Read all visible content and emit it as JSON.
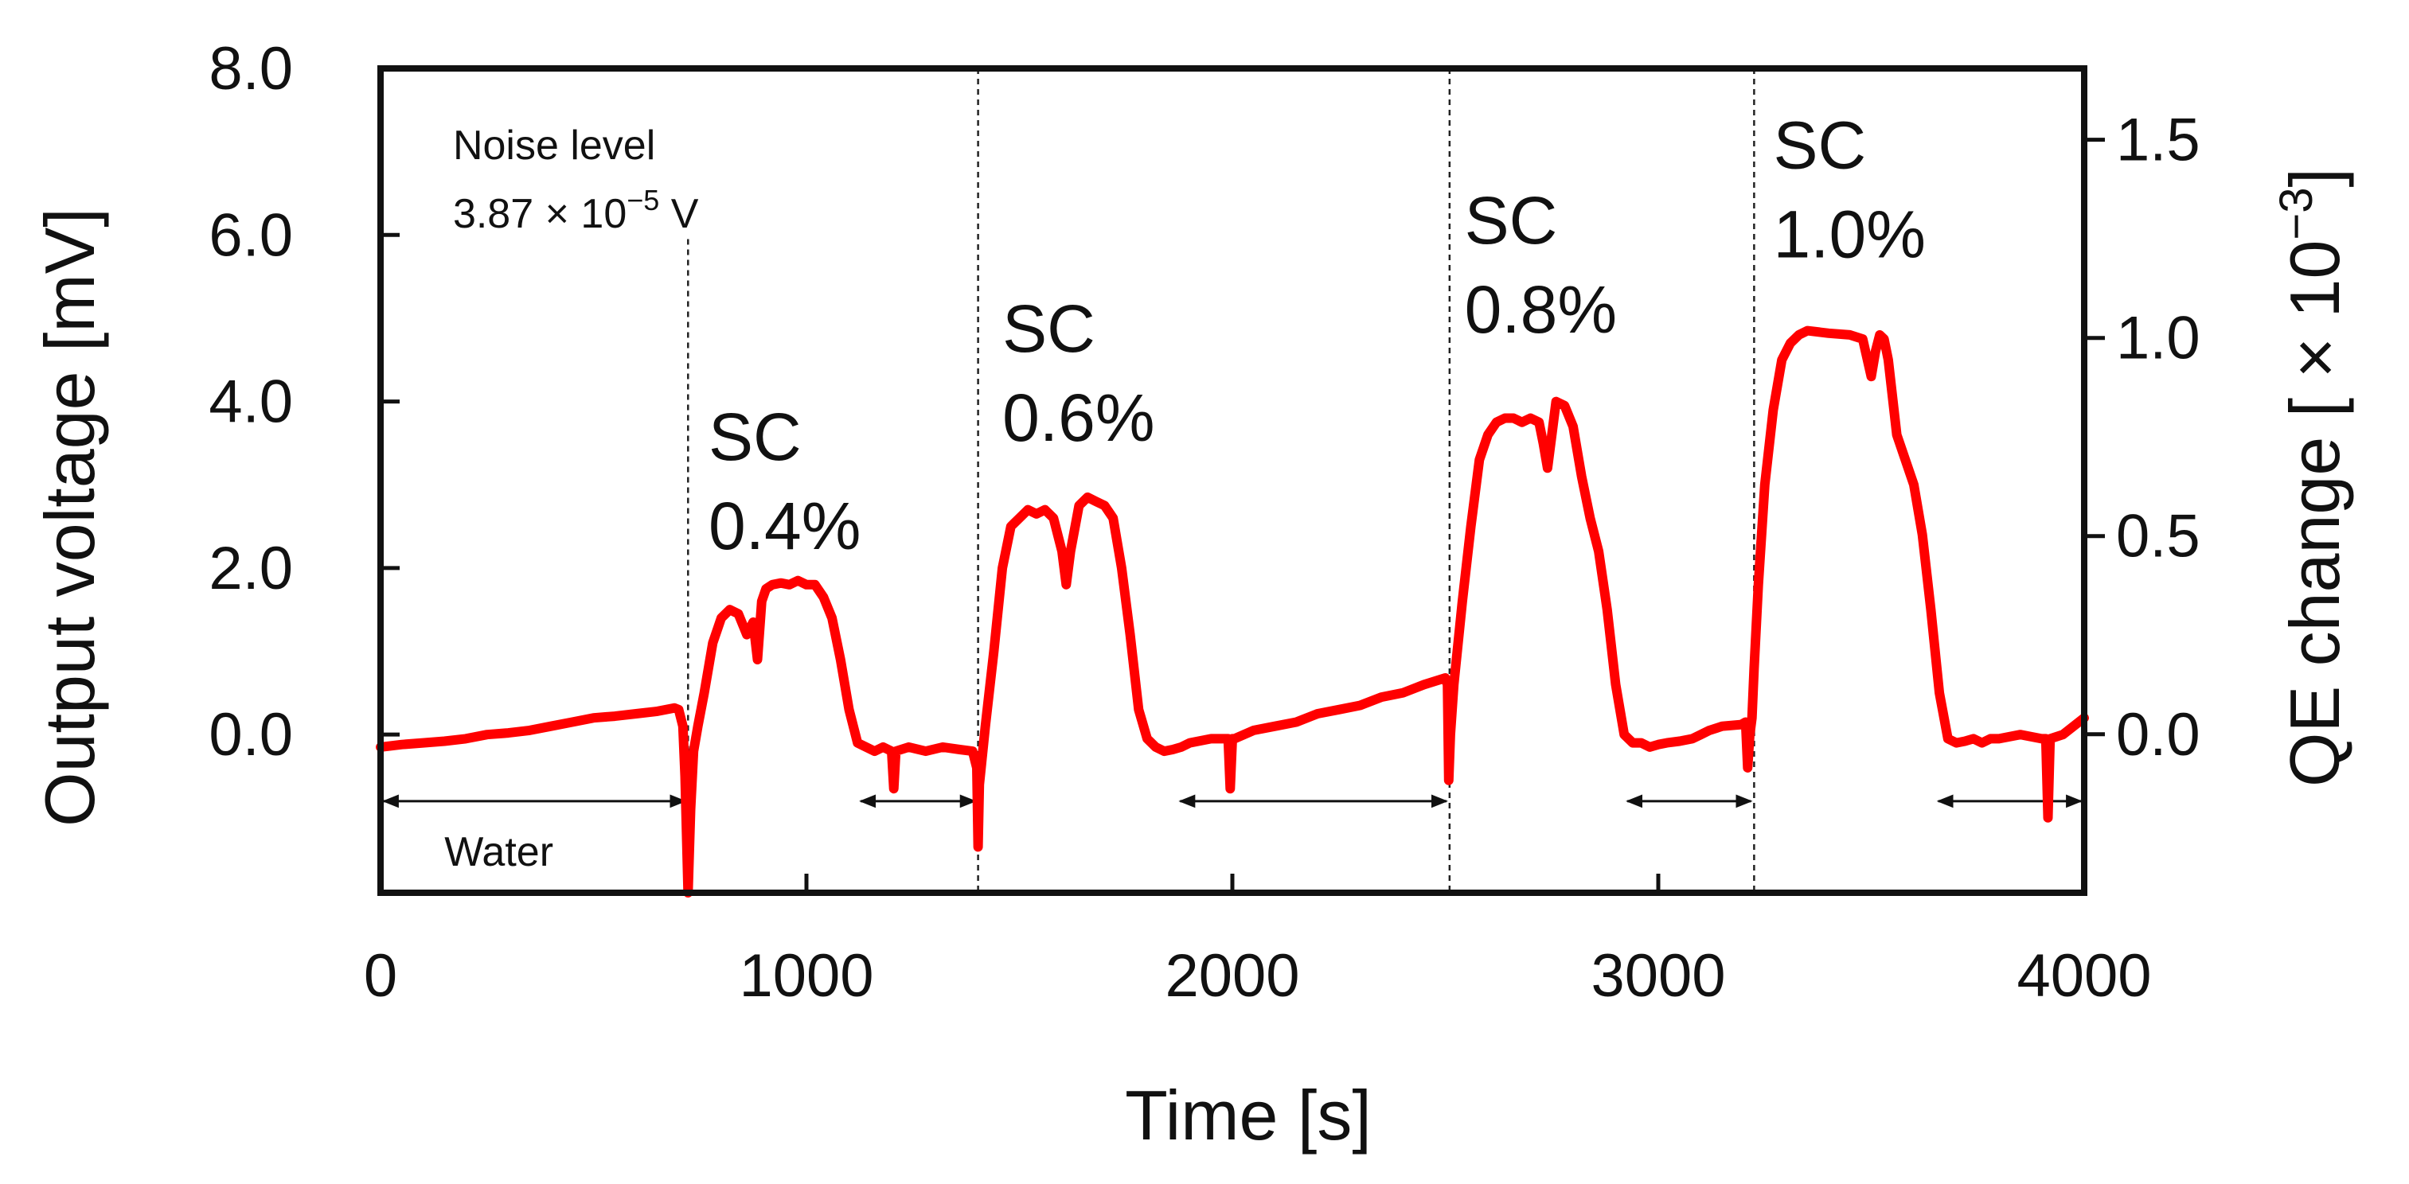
{
  "chart_data": {
    "type": "line",
    "xlabel": "Time [s]",
    "ylabel": "Output voltage [mV]",
    "y2label_prefix": "QE change [ × 10",
    "y2label_exp": "−3",
    "y2label_suffix": "]",
    "xlim": [
      0,
      4000
    ],
    "ylim": [
      -1.9,
      8.0
    ],
    "y2lim": [
      -0.4,
      1.68
    ],
    "x_ticks": [
      0,
      1000,
      2000,
      3000,
      4000
    ],
    "x_tick_labels": [
      "0",
      "1000",
      "2000",
      "3000",
      "4000"
    ],
    "y_ticks": [
      0,
      2,
      4,
      6,
      8
    ],
    "y_tick_labels": [
      "0.0",
      "2.0",
      "4.0",
      "6.0",
      "8.0"
    ],
    "y2_ticks": [
      0,
      0.5,
      1.0,
      1.5
    ],
    "y2_tick_labels": [
      "0.0",
      "0.5",
      "1.0",
      "1.5"
    ],
    "line_color": "#ff0000",
    "series": [
      {
        "name": "Output voltage",
        "x": [
          0,
          50,
          100,
          150,
          200,
          250,
          300,
          350,
          400,
          450,
          500,
          550,
          600,
          650,
          690,
          700,
          710,
          715,
          722,
          728,
          735,
          745,
          760,
          780,
          800,
          820,
          840,
          860,
          875,
          885,
          895,
          905,
          920,
          940,
          960,
          980,
          1000,
          1020,
          1040,
          1060,
          1080,
          1100,
          1120,
          1140,
          1160,
          1180,
          1200,
          1205,
          1210,
          1240,
          1280,
          1320,
          1360,
          1390,
          1400,
          1403,
          1406,
          1412,
          1420,
          1440,
          1460,
          1480,
          1500,
          1520,
          1540,
          1560,
          1580,
          1600,
          1610,
          1620,
          1640,
          1660,
          1680,
          1700,
          1720,
          1740,
          1760,
          1780,
          1800,
          1820,
          1840,
          1860,
          1880,
          1900,
          1950,
          1990,
          1995,
          2000,
          2005,
          2050,
          2100,
          2150,
          2200,
          2250,
          2300,
          2350,
          2400,
          2450,
          2500,
          2505,
          2508,
          2512,
          2520,
          2540,
          2560,
          2580,
          2600,
          2620,
          2640,
          2660,
          2680,
          2700,
          2720,
          2730,
          2740,
          2750,
          2760,
          2780,
          2800,
          2820,
          2840,
          2860,
          2880,
          2900,
          2920,
          2940,
          2960,
          2980,
          3000,
          3020,
          3050,
          3080,
          3100,
          3120,
          3150,
          3195,
          3205,
          3210,
          3215,
          3220,
          3225,
          3235,
          3250,
          3270,
          3290,
          3310,
          3330,
          3350,
          3400,
          3450,
          3480,
          3500,
          3510,
          3520,
          3530,
          3540,
          3560,
          3580,
          3600,
          3620,
          3640,
          3660,
          3680,
          3700,
          3720,
          3740,
          3760,
          3780,
          3800,
          3850,
          3900,
          3910,
          3915,
          3920,
          3950,
          4000
        ],
        "values": [
          -0.15,
          -0.12,
          -0.1,
          -0.08,
          -0.05,
          0.0,
          0.02,
          0.05,
          0.1,
          0.15,
          0.2,
          0.22,
          0.25,
          0.28,
          0.32,
          0.3,
          0.1,
          -0.5,
          -1.9,
          -0.9,
          -0.2,
          0.1,
          0.5,
          1.1,
          1.4,
          1.5,
          1.45,
          1.2,
          1.35,
          0.9,
          1.6,
          1.75,
          1.8,
          1.82,
          1.8,
          1.85,
          1.8,
          1.8,
          1.65,
          1.4,
          0.9,
          0.3,
          -0.1,
          -0.15,
          -0.2,
          -0.15,
          -0.2,
          -0.65,
          -0.2,
          -0.15,
          -0.2,
          -0.15,
          -0.18,
          -0.2,
          -0.4,
          -1.35,
          -0.6,
          -0.3,
          0.1,
          1.0,
          2.0,
          2.5,
          2.6,
          2.7,
          2.65,
          2.7,
          2.6,
          2.2,
          1.8,
          2.2,
          2.75,
          2.85,
          2.8,
          2.75,
          2.6,
          2.0,
          1.2,
          0.3,
          -0.05,
          -0.15,
          -0.2,
          -0.18,
          -0.15,
          -0.1,
          -0.05,
          -0.05,
          -0.65,
          -0.05,
          -0.05,
          0.05,
          0.1,
          0.15,
          0.25,
          0.3,
          0.35,
          0.45,
          0.5,
          0.6,
          0.68,
          0.6,
          -0.55,
          0.0,
          0.6,
          1.6,
          2.5,
          3.3,
          3.6,
          3.75,
          3.8,
          3.8,
          3.75,
          3.8,
          3.75,
          3.5,
          3.2,
          3.6,
          4.0,
          3.95,
          3.7,
          3.1,
          2.6,
          2.2,
          1.5,
          0.6,
          0.0,
          -0.1,
          -0.1,
          -0.15,
          -0.12,
          -0.1,
          -0.08,
          -0.05,
          0.0,
          0.05,
          0.1,
          0.12,
          0.15,
          -0.4,
          0.0,
          0.2,
          0.8,
          1.8,
          3.0,
          3.9,
          4.5,
          4.7,
          4.8,
          4.85,
          4.82,
          4.8,
          4.75,
          4.3,
          4.6,
          4.8,
          4.75,
          4.5,
          3.6,
          3.3,
          3.0,
          2.4,
          1.5,
          0.5,
          -0.05,
          -0.1,
          -0.08,
          -0.05,
          -0.1,
          -0.05,
          -0.05,
          0.0,
          -0.05,
          -0.05,
          -1.0,
          -0.05,
          0.0,
          0.2
        ]
      }
    ],
    "dividers_x": [
      722,
      1403,
      2510,
      3225
    ],
    "labels": [
      {
        "line1": "SC",
        "line2": "0.4%",
        "x": 770,
        "y": 3.3
      },
      {
        "line1": "SC",
        "line2": "0.6%",
        "x": 1460,
        "y": 4.6
      },
      {
        "line1": "SC",
        "line2": "0.8%",
        "x": 2545,
        "y": 5.9
      },
      {
        "line1": "SC",
        "line2": "1.0%",
        "x": 3270,
        "y": 6.8
      }
    ],
    "noise": {
      "title": "Noise level",
      "value_prefix": "3.87 × 10",
      "value_exp": "−5",
      "value_suffix": " V",
      "x": 170
    },
    "water_label": "Water",
    "baseline_arrows": [
      {
        "from": 0,
        "to": 722
      },
      {
        "from": 1120,
        "to": 1403
      },
      {
        "from": 1870,
        "to": 2510
      },
      {
        "from": 2920,
        "to": 3225
      },
      {
        "from": 3650,
        "to": 4000
      }
    ],
    "baseline_arrow_y": -0.8
  }
}
